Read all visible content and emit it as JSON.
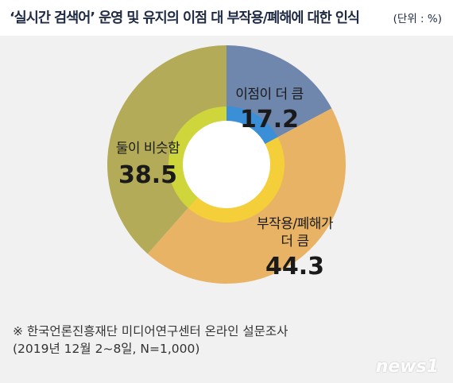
{
  "header": {
    "title": "‘실시간 검색어’ 운영 및 유지의 이점 대 부작용/폐해에 대한 인식",
    "unit": "(단위 : %)"
  },
  "chart_data": {
    "type": "pie",
    "title": "‘실시간 검색어’ 운영 및 유지의 이점 대 부작용/폐해에 대한 인식",
    "unit": "(단위 : %)",
    "slices": [
      {
        "label": "이점이 더 큼",
        "value": 17.2,
        "color": "#6f86ad",
        "inner_color": "#3a8fd6"
      },
      {
        "label": "부작용/폐해가 더 큼",
        "value": 44.3,
        "color": "#e8b365",
        "inner_color": "#f5cf3a"
      },
      {
        "label": "둘이 비슷함",
        "value": 38.5,
        "color": "#b3ab57",
        "inner_color": "#cfd63c"
      }
    ]
  },
  "labels": {
    "benefit_name": "이점이 더 큼",
    "benefit_value": "17.2",
    "harm_name_line1": "부작용/폐해가",
    "harm_name_line2": "더 큼",
    "harm_value": "44.3",
    "similar_name": "둘이 비슷함",
    "similar_value": "38.5"
  },
  "source": {
    "line1": "※  한국언론진흥재단 미디어연구센터 온라인 설문조사",
    "line2": "(2019년 12월 2~8일, N=1,000)"
  },
  "watermark": "news1"
}
